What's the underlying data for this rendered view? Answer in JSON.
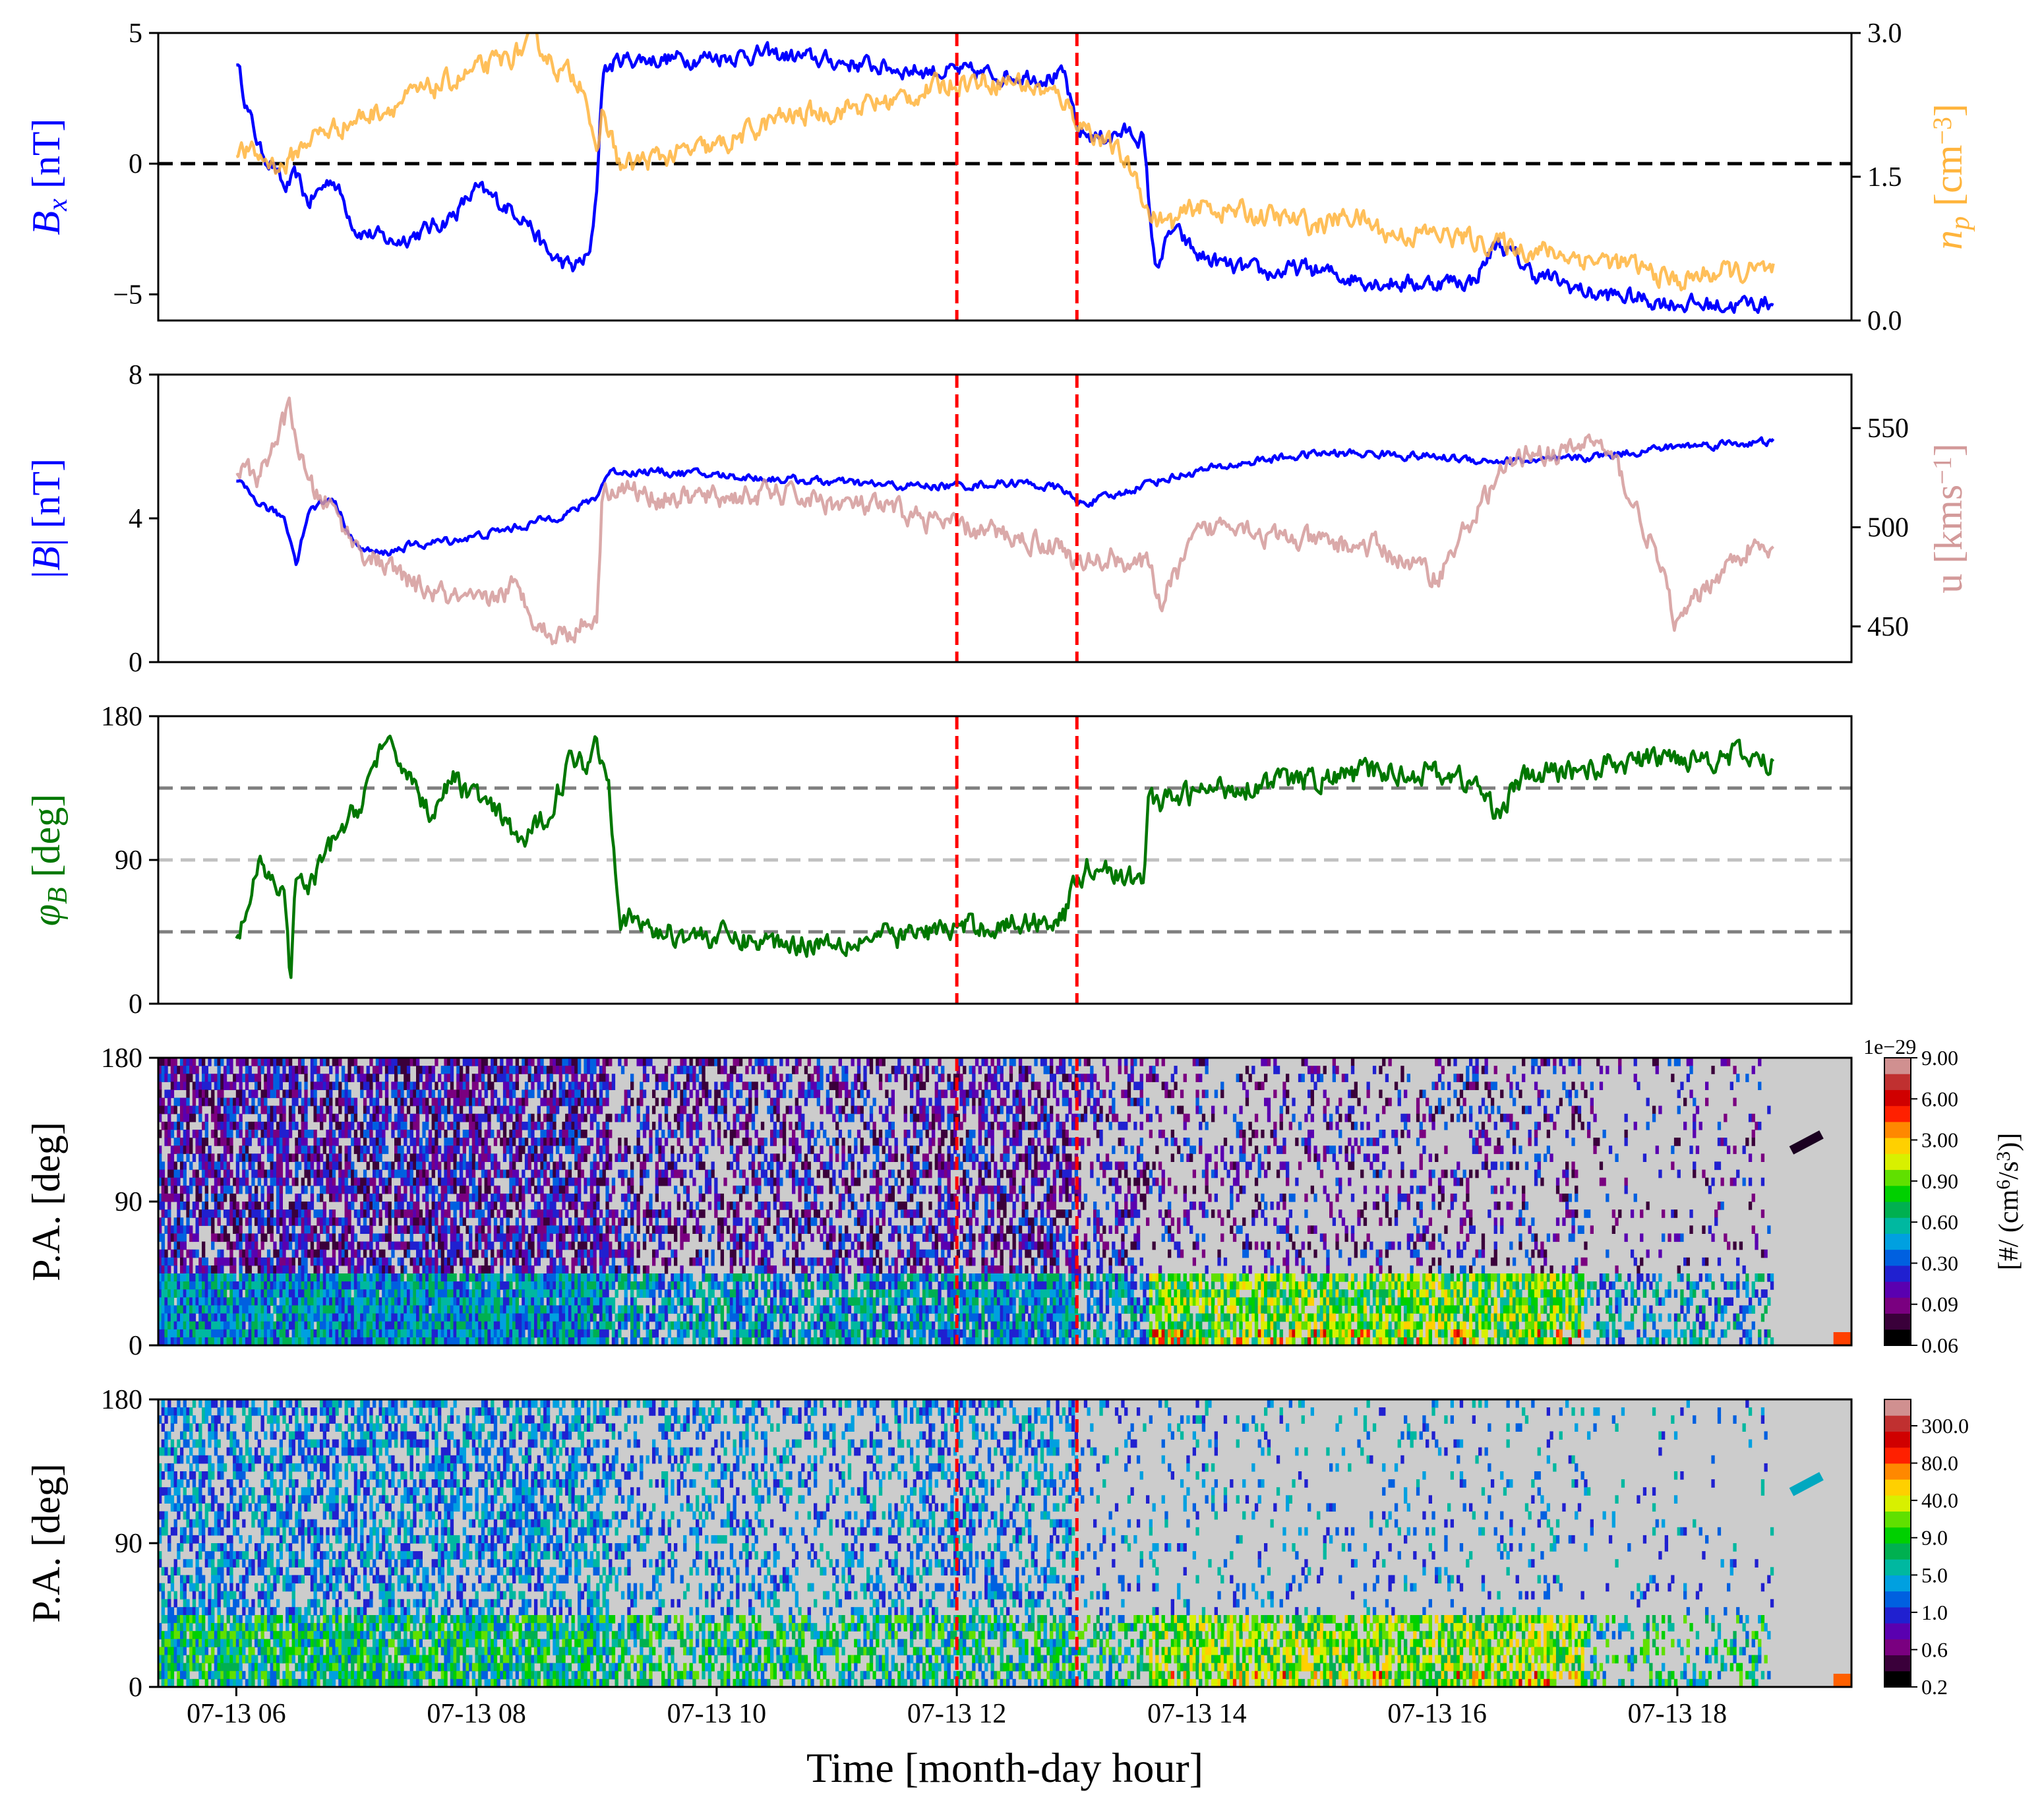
{
  "colors": {
    "bx": "#0000ff",
    "np": "#ffb43c",
    "b_mag": "#0000ff",
    "u": "#d39a9a",
    "phi": "#007700",
    "marker": "#ff0000",
    "zero_line": "#000000",
    "ref_dark": "#7f7f7f",
    "ref_light": "#c0c0c0",
    "spec_bg": "#cccccc"
  },
  "time_axis": {
    "xlabel": "Time [month-day hour]",
    "range_hours": [
      5.35,
      19.45
    ],
    "ticks": [
      6,
      8,
      10,
      12,
      14,
      16,
      18
    ],
    "tick_labels": [
      "07-13 06",
      "07-13 08",
      "07-13 10",
      "07-13 12",
      "07-13 14",
      "07-13 16",
      "07-13 18"
    ]
  },
  "markers_hours": [
    12.0,
    13.0
  ],
  "chart_data": [
    {
      "type": "line",
      "ylabel_left": "B_x [nT]",
      "ylabel_right": "n_p [cm^-3]",
      "ylim_left": [
        -6,
        5
      ],
      "ylim_right": [
        0.0,
        3.0
      ],
      "yticks_left": [
        -5,
        0,
        5
      ],
      "ytick_labels_left": [
        "−5",
        "0",
        "5"
      ],
      "yticks_right": [
        0.0,
        1.5,
        3.0
      ],
      "ytick_labels_right": [
        "0.0",
        "1.5",
        "3.0"
      ],
      "hline": 0,
      "series": [
        {
          "key": "bx",
          "axis": "left",
          "noise": 0.35,
          "x": [
            6.0,
            6.1,
            6.2,
            6.3,
            6.4,
            6.5,
            6.6,
            6.8,
            7.0,
            7.3,
            7.6,
            7.8,
            8.0,
            8.2,
            8.4,
            8.6,
            8.8,
            8.95,
            9.0,
            9.05,
            9.2,
            9.6,
            10.0,
            10.4,
            10.8,
            11.2,
            11.6,
            12.0,
            12.3,
            12.6,
            12.9,
            13.0,
            13.2,
            13.4,
            13.55,
            13.6,
            13.65,
            13.8,
            14.0,
            14.3,
            14.6,
            14.9,
            15.2,
            15.5,
            15.8,
            16.1,
            16.3,
            16.5,
            16.8,
            17.0,
            17.3,
            17.6,
            17.9,
            18.2,
            18.5,
            18.8
          ],
          "y": [
            4.0,
            2.0,
            0.5,
            0.0,
            -1.0,
            -0.5,
            -1.5,
            -0.5,
            -2.5,
            -3.0,
            -2.5,
            -2.0,
            -1.0,
            -1.5,
            -2.0,
            -3.5,
            -4.0,
            -3.5,
            -1.0,
            3.5,
            4.0,
            4.0,
            4.1,
            4.2,
            4.0,
            3.8,
            3.6,
            3.5,
            3.4,
            3.4,
            3.3,
            1.2,
            1.0,
            1.2,
            1.0,
            -1.5,
            -4.0,
            -2.5,
            -3.5,
            -4.0,
            -4.2,
            -4.0,
            -4.3,
            -4.5,
            -4.6,
            -4.5,
            -4.5,
            -3.0,
            -4.2,
            -4.5,
            -5.0,
            -5.1,
            -5.3,
            -5.4,
            -5.4,
            -5.3
          ]
        },
        {
          "key": "np",
          "axis": "right",
          "noise": 0.12,
          "x": [
            6.0,
            6.2,
            6.4,
            6.6,
            6.8,
            7.0,
            7.4,
            7.8,
            8.2,
            8.5,
            8.7,
            8.9,
            9.0,
            9.05,
            9.2,
            9.5,
            10.0,
            10.5,
            11.0,
            11.5,
            12.0,
            12.5,
            12.9,
            13.0,
            13.3,
            13.5,
            13.6,
            13.8,
            14.0,
            14.5,
            15.0,
            15.3,
            15.6,
            16.0,
            16.5,
            17.0,
            17.5,
            17.8,
            18.0,
            18.3,
            18.6,
            18.8
          ],
          "y": [
            1.8,
            1.7,
            1.6,
            1.9,
            2.0,
            2.1,
            2.3,
            2.5,
            2.7,
            2.9,
            2.6,
            2.5,
            1.6,
            2.2,
            1.6,
            1.7,
            1.8,
            2.1,
            2.2,
            2.3,
            2.5,
            2.5,
            2.3,
            2.1,
            1.8,
            1.5,
            1.1,
            1.0,
            1.2,
            1.1,
            1.0,
            1.1,
            0.9,
            0.9,
            0.8,
            0.7,
            0.6,
            0.5,
            0.4,
            0.5,
            0.5,
            0.5
          ]
        }
      ]
    },
    {
      "type": "line",
      "ylabel_left": "|B| [nT]",
      "ylabel_right": "u [kms^-1]",
      "ylim_left": [
        0,
        8
      ],
      "ylim_right": [
        432,
        577
      ],
      "yticks_left": [
        0,
        4,
        8
      ],
      "ytick_labels_left": [
        "0",
        "4",
        "8"
      ],
      "yticks_right": [
        450,
        500,
        550
      ],
      "ytick_labels_right": [
        "450",
        "500",
        "550"
      ],
      "series": [
        {
          "key": "b_mag",
          "axis": "left",
          "noise": 0.12,
          "x": [
            6.0,
            6.2,
            6.4,
            6.5,
            6.6,
            6.8,
            7.0,
            7.2,
            7.4,
            7.6,
            8.0,
            8.4,
            8.8,
            9.0,
            9.1,
            9.5,
            10.0,
            10.5,
            11.0,
            11.5,
            12.0,
            12.5,
            12.9,
            13.0,
            13.3,
            13.6,
            14.0,
            14.5,
            15.0,
            15.5,
            16.0,
            16.5,
            17.0,
            17.5,
            18.0,
            18.5,
            18.8
          ],
          "y": [
            5.0,
            4.4,
            4.0,
            2.8,
            4.2,
            4.6,
            3.2,
            3.0,
            3.2,
            3.3,
            3.5,
            3.8,
            4.2,
            4.6,
            5.3,
            5.3,
            5.2,
            5.1,
            5.0,
            4.9,
            4.9,
            5.0,
            4.8,
            4.4,
            4.6,
            5.0,
            5.3,
            5.6,
            5.8,
            5.8,
            5.7,
            5.6,
            5.6,
            5.8,
            6.0,
            6.1,
            6.1
          ]
        },
        {
          "key": "u",
          "axis": "right",
          "noise": 6,
          "x": [
            6.0,
            6.2,
            6.3,
            6.45,
            6.5,
            6.6,
            6.8,
            7.0,
            7.5,
            8.0,
            8.3,
            8.5,
            8.6,
            8.8,
            9.0,
            9.05,
            9.2,
            9.5,
            10.0,
            10.5,
            11.0,
            11.5,
            12.0,
            12.5,
            12.9,
            13.0,
            13.3,
            13.6,
            13.7,
            14.0,
            14.3,
            14.6,
            15.0,
            15.5,
            16.0,
            16.5,
            16.8,
            17.0,
            17.3,
            17.5,
            17.8,
            18.0,
            18.3,
            18.6,
            18.8
          ],
          "y": [
            530,
            525,
            540,
            560,
            545,
            520,
            510,
            490,
            470,
            460,
            470,
            455,
            445,
            448,
            455,
            520,
            520,
            515,
            515,
            517,
            512,
            508,
            500,
            495,
            490,
            480,
            485,
            480,
            462,
            495,
            505,
            495,
            492,
            490,
            475,
            525,
            540,
            535,
            545,
            530,
            490,
            450,
            475,
            490,
            485
          ]
        }
      ]
    },
    {
      "type": "line",
      "ylabel_left": "φ_B [deg]",
      "ylim_left": [
        0,
        180
      ],
      "yticks_left": [
        0,
        90,
        180
      ],
      "ytick_labels_left": [
        "0",
        "90",
        "180"
      ],
      "hlines": [
        {
          "y": 135,
          "style": "dark"
        },
        {
          "y": 90,
          "style": "light"
        },
        {
          "y": 45,
          "style": "dark"
        }
      ],
      "series": [
        {
          "key": "phi",
          "axis": "left",
          "noise": 8,
          "x": [
            6.0,
            6.2,
            6.4,
            6.45,
            6.5,
            6.6,
            6.8,
            7.0,
            7.2,
            7.4,
            7.6,
            7.8,
            8.0,
            8.2,
            8.4,
            8.6,
            8.8,
            8.9,
            9.0,
            9.1,
            9.2,
            9.5,
            10.0,
            10.5,
            11.0,
            11.5,
            12.0,
            12.5,
            12.9,
            13.0,
            13.2,
            13.4,
            13.55,
            13.6,
            13.7,
            13.9,
            14.2,
            14.5,
            15.0,
            15.5,
            16.0,
            16.3,
            16.5,
            16.7,
            17.0,
            17.5,
            18.0,
            18.5,
            18.8
          ],
          "y": [
            38,
            85,
            70,
            15,
            80,
            70,
            100,
            120,
            160,
            150,
            120,
            140,
            130,
            115,
            100,
            120,
            155,
            150,
            165,
            140,
            55,
            45,
            42,
            38,
            40,
            42,
            47,
            50,
            55,
            80,
            90,
            75,
            80,
            130,
            125,
            130,
            135,
            138,
            140,
            145,
            145,
            138,
            120,
            140,
            145,
            150,
            155,
            155,
            150
          ]
        }
      ]
    },
    {
      "type": "heatmap",
      "ylabel_left": "P.A. [deg]",
      "ylim_left": [
        0,
        180
      ],
      "yticks_left": [
        0,
        90,
        180
      ],
      "ytick_labels_left": [
        "0",
        "90",
        "180"
      ],
      "colorbar_label": "[#/ (cm^6/s^3)]",
      "colorbar_offset": "1e−29",
      "colorbar_ticks": [
        "9.00",
        "6.00",
        "3.00",
        "0.90",
        "0.60",
        "0.30",
        "0.09",
        "0.06"
      ],
      "colorbar_colors": [
        "#000000",
        "#3a003a",
        "#7a0080",
        "#5a00b0",
        "#2020d0",
        "#0060e0",
        "#00a0e0",
        "#00b8a0",
        "#00b050",
        "#00d000",
        "#60e000",
        "#d8f000",
        "#ffd000",
        "#ff8800",
        "#ff2000",
        "#d00000",
        "#c03030",
        "#d09090"
      ]
    },
    {
      "type": "heatmap",
      "ylabel_left": "P.A. [deg]",
      "ylim_left": [
        0,
        180
      ],
      "yticks_left": [
        0,
        90,
        180
      ],
      "ytick_labels_left": [
        "0",
        "90",
        "180"
      ],
      "colorbar_ticks": [
        "300.0",
        "80.0",
        "40.0",
        "9.0",
        "5.0",
        "1.0",
        "0.6",
        "0.2"
      ],
      "colorbar_colors": [
        "#000000",
        "#3a003a",
        "#7a0080",
        "#5a00b0",
        "#2020d0",
        "#0060e0",
        "#00a0e0",
        "#00b8a0",
        "#00b050",
        "#00d000",
        "#60e000",
        "#d8f000",
        "#ffd000",
        "#ff8800",
        "#ff2000",
        "#d00000",
        "#c03030",
        "#d09090"
      ]
    }
  ]
}
